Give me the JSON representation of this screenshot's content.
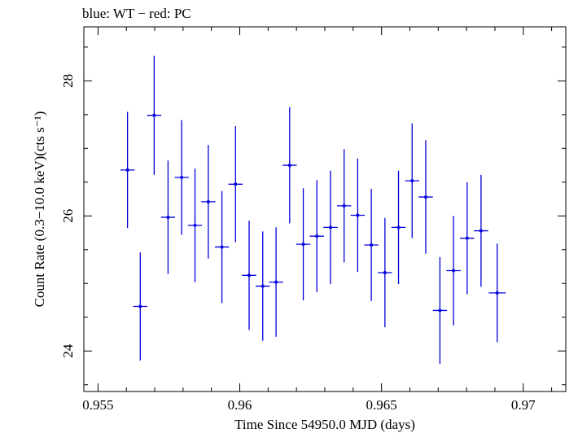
{
  "chart_data": {
    "type": "scatter",
    "title": "blue: WT − red: PC",
    "xlabel": "Time Since 54950.0 MJD (days)",
    "ylabel": "Count Rate (0.3−10.0 keV)(cts s⁻¹)",
    "xlim": [
      0.9545,
      0.9715
    ],
    "ylim": [
      23.4,
      28.8
    ],
    "x_ticks": [
      0.955,
      0.96,
      0.965,
      0.97
    ],
    "x_tick_labels": [
      "0.955",
      "0.96",
      "0.965",
      "0.97"
    ],
    "y_ticks": [
      24,
      26,
      28
    ],
    "y_tick_labels": [
      "24",
      "26",
      "28"
    ],
    "grid": false,
    "series": [
      {
        "color": "#0000dd",
        "points": [
          {
            "x": 0.95604,
            "y": 26.68,
            "xerr": 0.00025,
            "yerr": 0.86
          },
          {
            "x": 0.95649,
            "y": 24.66,
            "xerr": 0.00025,
            "yerr": 0.8
          },
          {
            "x": 0.95698,
            "y": 27.49,
            "xerr": 0.00025,
            "yerr": 0.88
          },
          {
            "x": 0.95747,
            "y": 25.98,
            "xerr": 0.00025,
            "yerr": 0.84
          },
          {
            "x": 0.95795,
            "y": 26.57,
            "xerr": 0.00025,
            "yerr": 0.85
          },
          {
            "x": 0.95842,
            "y": 25.86,
            "xerr": 0.00025,
            "yerr": 0.84
          },
          {
            "x": 0.95889,
            "y": 26.21,
            "xerr": 0.00025,
            "yerr": 0.84
          },
          {
            "x": 0.95937,
            "y": 25.54,
            "xerr": 0.00025,
            "yerr": 0.83
          },
          {
            "x": 0.95985,
            "y": 26.47,
            "xerr": 0.00025,
            "yerr": 0.86
          },
          {
            "x": 0.96033,
            "y": 25.12,
            "xerr": 0.00025,
            "yerr": 0.81
          },
          {
            "x": 0.96081,
            "y": 24.96,
            "xerr": 0.00025,
            "yerr": 0.81
          },
          {
            "x": 0.96128,
            "y": 25.02,
            "xerr": 0.00025,
            "yerr": 0.81
          },
          {
            "x": 0.96176,
            "y": 26.75,
            "xerr": 0.00025,
            "yerr": 0.86
          },
          {
            "x": 0.96224,
            "y": 25.58,
            "xerr": 0.00025,
            "yerr": 0.83
          },
          {
            "x": 0.96272,
            "y": 25.7,
            "xerr": 0.00025,
            "yerr": 0.83
          },
          {
            "x": 0.9632,
            "y": 25.83,
            "xerr": 0.00025,
            "yerr": 0.84
          },
          {
            "x": 0.96368,
            "y": 26.15,
            "xerr": 0.00025,
            "yerr": 0.84
          },
          {
            "x": 0.96416,
            "y": 26.01,
            "xerr": 0.00025,
            "yerr": 0.84
          },
          {
            "x": 0.96464,
            "y": 25.57,
            "xerr": 0.00025,
            "yerr": 0.83
          },
          {
            "x": 0.96512,
            "y": 25.16,
            "xerr": 0.00025,
            "yerr": 0.81
          },
          {
            "x": 0.9656,
            "y": 25.83,
            "xerr": 0.00025,
            "yerr": 0.84
          },
          {
            "x": 0.96608,
            "y": 26.52,
            "xerr": 0.00025,
            "yerr": 0.85
          },
          {
            "x": 0.96656,
            "y": 26.28,
            "xerr": 0.00025,
            "yerr": 0.84
          },
          {
            "x": 0.96706,
            "y": 24.6,
            "xerr": 0.00025,
            "yerr": 0.79
          },
          {
            "x": 0.96754,
            "y": 25.19,
            "xerr": 0.00025,
            "yerr": 0.81
          },
          {
            "x": 0.96802,
            "y": 25.67,
            "xerr": 0.00025,
            "yerr": 0.83
          },
          {
            "x": 0.96851,
            "y": 25.78,
            "xerr": 0.00025,
            "yerr": 0.83
          },
          {
            "x": 0.96908,
            "y": 24.86,
            "xerr": 0.0003,
            "yerr": 0.73
          }
        ]
      }
    ]
  }
}
